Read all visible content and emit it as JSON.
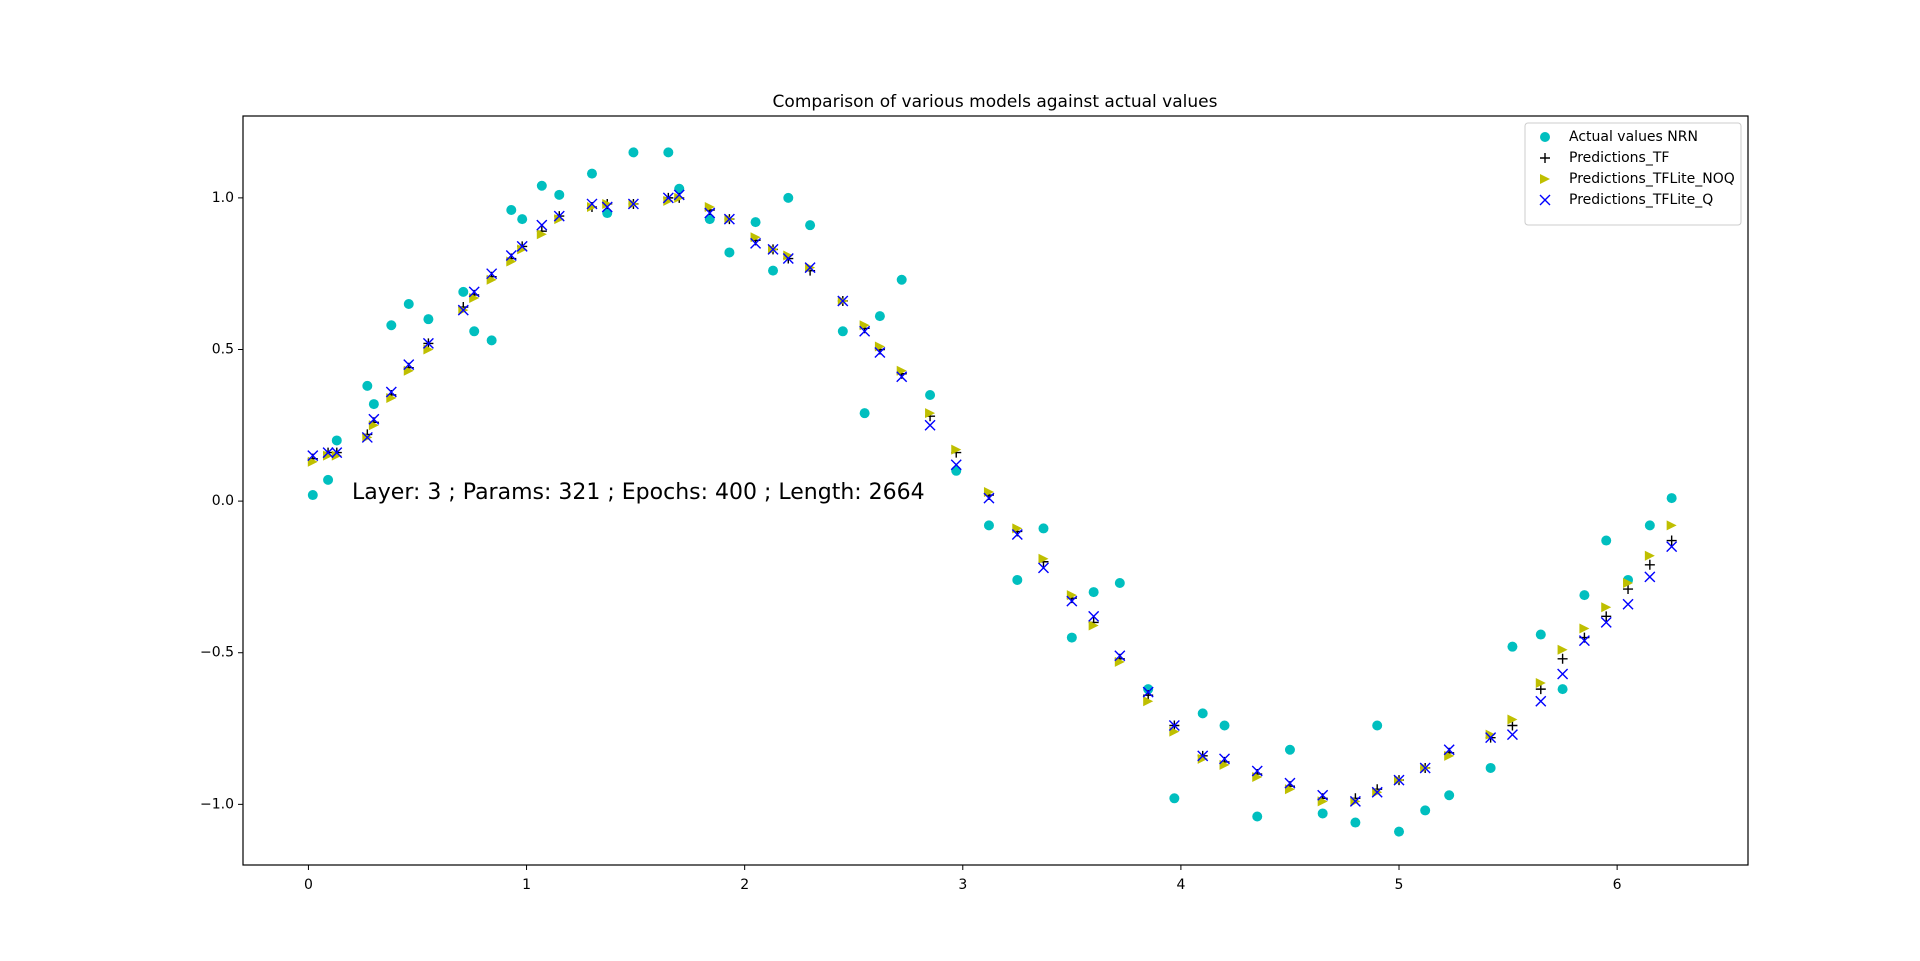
{
  "chart_data": {
    "type": "scatter",
    "title": "Comparison of various models against actual values",
    "annotation": "Layer: 3 ; Params: 321 ; Epochs: 400 ; Length: 2664",
    "annotation_at": [
      0.2,
      0.0
    ],
    "legend": "upper right",
    "xlim": [
      -0.3,
      6.6
    ],
    "ylim": [
      -1.2,
      1.27
    ],
    "xticks": [
      0,
      1,
      2,
      3,
      4,
      5,
      6
    ],
    "yticks": [
      {
        "value": -1.0,
        "label": "−1.0"
      },
      {
        "value": -0.5,
        "label": "−0.5"
      },
      {
        "value": 0.0,
        "label": "0.0"
      },
      {
        "value": 0.5,
        "label": "0.5"
      },
      {
        "value": 1.0,
        "label": "1.0"
      }
    ],
    "x": [
      0.02,
      0.09,
      0.13,
      0.27,
      0.3,
      0.38,
      0.46,
      0.55,
      0.71,
      0.76,
      0.84,
      0.93,
      0.98,
      1.07,
      1.15,
      1.3,
      1.37,
      1.49,
      1.65,
      1.7,
      1.84,
      1.93,
      2.05,
      2.13,
      2.2,
      2.3,
      2.45,
      2.55,
      2.62,
      2.72,
      2.85,
      2.97,
      3.12,
      3.25,
      3.37,
      3.5,
      3.6,
      3.72,
      3.85,
      3.97,
      4.1,
      4.2,
      4.35,
      4.5,
      4.65,
      4.8,
      4.9,
      5.0,
      5.12,
      5.23,
      5.42,
      5.52,
      5.65,
      5.75,
      5.85,
      5.95,
      6.05,
      6.15,
      6.25
    ],
    "series": [
      {
        "name": "Actual values NRN",
        "color": "#00bfbf",
        "marker": "o",
        "values": [
          0.02,
          0.07,
          0.2,
          0.38,
          0.32,
          0.58,
          0.65,
          0.6,
          0.69,
          0.56,
          0.53,
          0.96,
          0.93,
          1.04,
          1.01,
          1.08,
          0.95,
          1.15,
          1.15,
          1.03,
          0.93,
          0.82,
          0.92,
          0.76,
          1.0,
          0.91,
          0.56,
          0.29,
          0.61,
          0.73,
          0.35,
          0.1,
          -0.08,
          -0.26,
          -0.09,
          -0.45,
          -0.3,
          -0.27,
          -0.62,
          -0.98,
          -0.7,
          -0.74,
          -1.04,
          -0.82,
          -1.03,
          -1.06,
          -0.74,
          -1.09,
          -1.02,
          -0.97,
          -0.88,
          -0.48,
          -0.44,
          -0.62,
          -0.31,
          -0.13,
          -0.26,
          -0.08,
          0.01
        ]
      },
      {
        "name": "Predictions_TF",
        "color": "#000000",
        "marker": "+",
        "values": [
          0.14,
          0.16,
          0.16,
          0.22,
          0.26,
          0.35,
          0.44,
          0.52,
          0.64,
          0.68,
          0.74,
          0.8,
          0.84,
          0.89,
          0.94,
          0.97,
          0.98,
          0.98,
          1.0,
          1.0,
          0.96,
          0.93,
          0.86,
          0.83,
          0.8,
          0.76,
          0.66,
          0.57,
          0.5,
          0.42,
          0.28,
          0.16,
          0.02,
          -0.1,
          -0.2,
          -0.32,
          -0.4,
          -0.52,
          -0.64,
          -0.74,
          -0.84,
          -0.86,
          -0.9,
          -0.94,
          -0.98,
          -0.98,
          -0.95,
          -0.92,
          -0.88,
          -0.83,
          -0.78,
          -0.74,
          -0.62,
          -0.52,
          -0.45,
          -0.38,
          -0.29,
          -0.21,
          -0.13
        ]
      },
      {
        "name": "Predictions_TFLite_NOQ",
        "color": "#bfbf00",
        "marker": ">",
        "values": [
          0.13,
          0.15,
          0.15,
          0.21,
          0.25,
          0.34,
          0.43,
          0.5,
          0.63,
          0.67,
          0.73,
          0.79,
          0.83,
          0.88,
          0.93,
          0.97,
          0.98,
          0.98,
          0.99,
          1.0,
          0.97,
          0.93,
          0.87,
          0.83,
          0.81,
          0.77,
          0.66,
          0.58,
          0.51,
          0.43,
          0.29,
          0.17,
          0.03,
          -0.09,
          -0.19,
          -0.31,
          -0.41,
          -0.53,
          -0.66,
          -0.76,
          -0.85,
          -0.87,
          -0.91,
          -0.95,
          -0.99,
          -0.99,
          -0.96,
          -0.92,
          -0.88,
          -0.84,
          -0.77,
          -0.72,
          -0.6,
          -0.49,
          -0.42,
          -0.35,
          -0.27,
          -0.18,
          -0.08
        ]
      },
      {
        "name": "Predictions_TFLite_Q",
        "color": "#0000ff",
        "marker": "x",
        "values": [
          0.15,
          0.16,
          0.16,
          0.21,
          0.27,
          0.36,
          0.45,
          0.52,
          0.63,
          0.69,
          0.75,
          0.81,
          0.84,
          0.91,
          0.94,
          0.98,
          0.97,
          0.98,
          1.0,
          1.01,
          0.95,
          0.93,
          0.85,
          0.83,
          0.8,
          0.77,
          0.66,
          0.56,
          0.49,
          0.41,
          0.25,
          0.12,
          0.01,
          -0.11,
          -0.22,
          -0.33,
          -0.38,
          -0.51,
          -0.63,
          -0.74,
          -0.84,
          -0.85,
          -0.89,
          -0.93,
          -0.97,
          -0.99,
          -0.96,
          -0.92,
          -0.88,
          -0.82,
          -0.78,
          -0.77,
          -0.66,
          -0.57,
          -0.46,
          -0.4,
          -0.34,
          -0.25,
          -0.15
        ]
      }
    ]
  }
}
